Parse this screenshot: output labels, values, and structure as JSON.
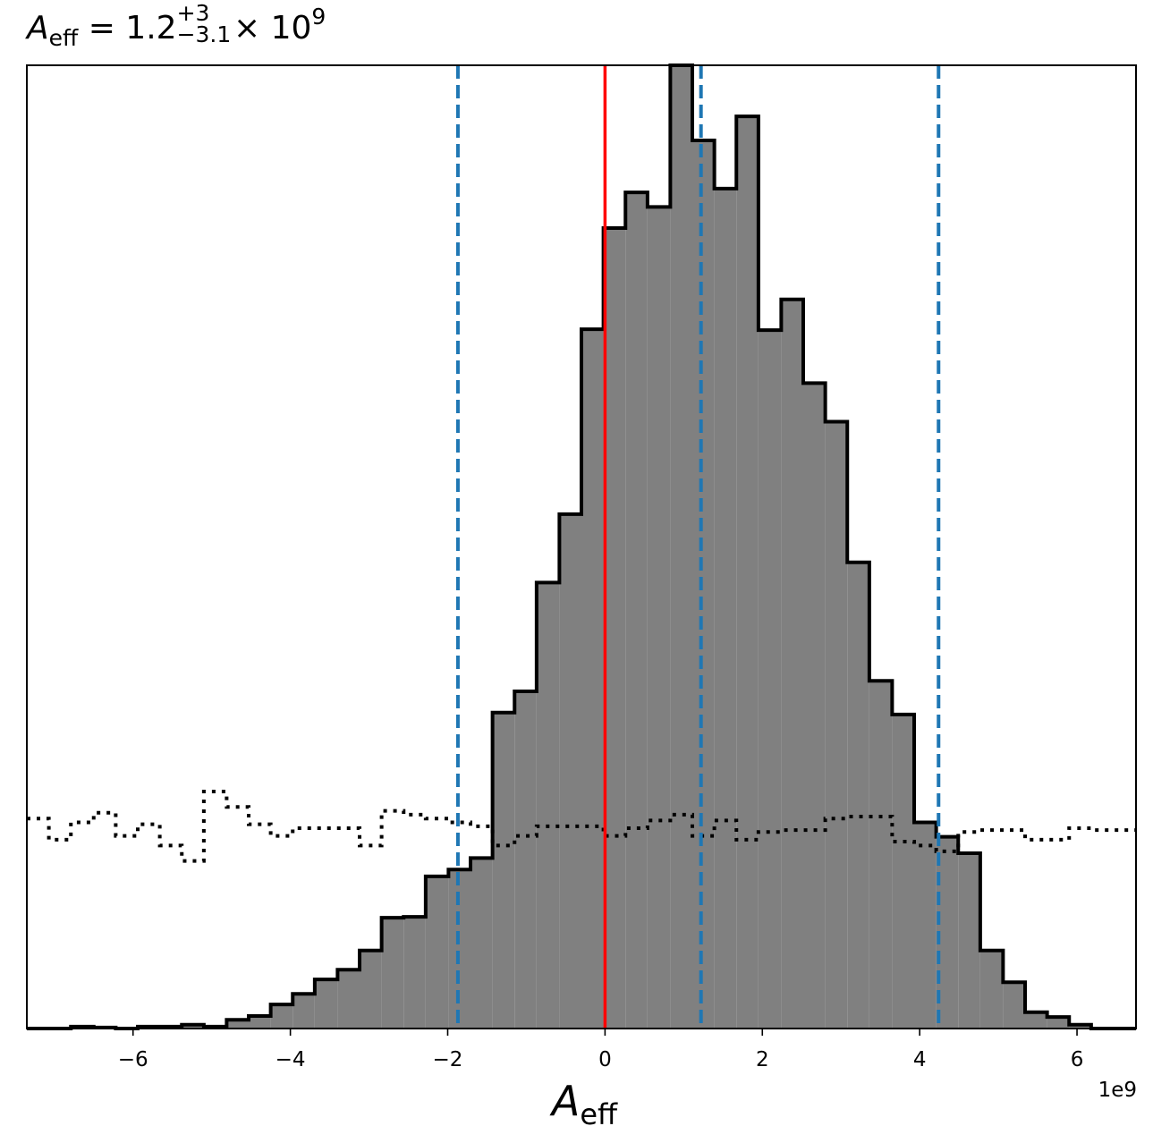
{
  "title": {
    "symbol": "A",
    "symbol_sub": "eff",
    "equals": " = 1.2",
    "plus_err": "+3",
    "minus_err": "−3.1",
    "times": " × 10",
    "exponent": "9"
  },
  "xlabel": {
    "symbol": "A",
    "sub": "eff"
  },
  "x_offset_text": "1e9",
  "chart_data": {
    "type": "histogram",
    "xlim": [
      -7.35,
      6.75
    ],
    "ylim": [
      0,
      1.0
    ],
    "xticks": [
      -6,
      -4,
      -2,
      0,
      2,
      4,
      6
    ],
    "xtick_labels": [
      "−6",
      "−4",
      "−2",
      "0",
      "2",
      "4",
      "6"
    ],
    "x_scale": "1e9",
    "grid": false,
    "series": [
      {
        "style": "filled-step",
        "fill": "#808080",
        "stroke": "#000000",
        "bin_edges": [
          -7.35,
          -7.07,
          -6.79,
          -6.5,
          -6.22,
          -5.94,
          -5.66,
          -5.38,
          -5.1,
          -4.81,
          -4.53,
          -4.25,
          -3.97,
          -3.69,
          -3.4,
          -3.12,
          -2.84,
          -2.56,
          -2.28,
          -1.99,
          -1.71,
          -1.43,
          -1.15,
          -0.87,
          -0.58,
          -0.3,
          -0.02,
          0.26,
          0.54,
          0.83,
          1.11,
          1.39,
          1.67,
          1.95,
          2.24,
          2.52,
          2.8,
          3.08,
          3.36,
          3.65,
          3.93,
          4.21,
          4.49,
          4.77,
          5.06,
          5.34,
          5.62,
          5.9,
          6.18,
          6.47,
          6.75
        ],
        "counts": [
          0.0,
          0.0,
          0.002,
          0.001,
          0.0,
          0.002,
          0.002,
          0.004,
          0.002,
          0.009,
          0.013,
          0.025,
          0.036,
          0.051,
          0.061,
          0.081,
          0.115,
          0.116,
          0.158,
          0.165,
          0.177,
          0.328,
          0.35,
          0.463,
          0.534,
          0.726,
          0.831,
          0.868,
          0.853,
          1.0,
          0.922,
          0.872,
          0.947,
          0.725,
          0.757,
          0.67,
          0.63,
          0.484,
          0.361,
          0.326,
          0.214,
          0.199,
          0.182,
          0.081,
          0.048,
          0.017,
          0.012,
          0.004,
          0.0,
          0.0
        ]
      },
      {
        "style": "dotted-step",
        "stroke": "#000000",
        "bin_edges": [
          -7.35,
          -7.07,
          -6.79,
          -6.5,
          -6.22,
          -5.94,
          -5.66,
          -5.38,
          -5.1,
          -4.81,
          -4.53,
          -4.25,
          -3.97,
          -3.69,
          -3.4,
          -3.12,
          -2.84,
          -2.56,
          -2.28,
          -1.99,
          -1.71,
          -1.43,
          -1.15,
          -0.87,
          -0.58,
          -0.3,
          -0.02,
          0.26,
          0.54,
          0.83,
          1.11,
          1.39,
          1.67,
          1.95,
          2.24,
          2.52,
          2.8,
          3.08,
          3.36,
          3.65,
          3.93,
          4.21,
          4.49,
          4.77,
          5.06,
          5.34,
          5.62,
          5.9,
          6.18,
          6.47,
          6.75
        ],
        "counts": [
          0.218,
          0.196,
          0.214,
          0.224,
          0.2,
          0.212,
          0.19,
          0.174,
          0.246,
          0.23,
          0.212,
          0.2,
          0.208,
          0.208,
          0.208,
          0.19,
          0.226,
          0.222,
          0.218,
          0.214,
          0.21,
          0.19,
          0.2,
          0.21,
          0.21,
          0.21,
          0.2,
          0.208,
          0.216,
          0.222,
          0.2,
          0.216,
          0.196,
          0.204,
          0.206,
          0.206,
          0.218,
          0.22,
          0.22,
          0.194,
          0.19,
          0.184,
          0.204,
          0.206,
          0.206,
          0.196,
          0.196,
          0.208,
          0.206,
          0.206
        ]
      }
    ],
    "vlines": [
      {
        "x": 0,
        "color": "#ff0000",
        "style": "solid"
      },
      {
        "x": -1.87,
        "color": "#1f77b4",
        "style": "dashed"
      },
      {
        "x": 1.22,
        "color": "#1f77b4",
        "style": "dashed"
      },
      {
        "x": 4.24,
        "color": "#1f77b4",
        "style": "dashed"
      }
    ]
  }
}
